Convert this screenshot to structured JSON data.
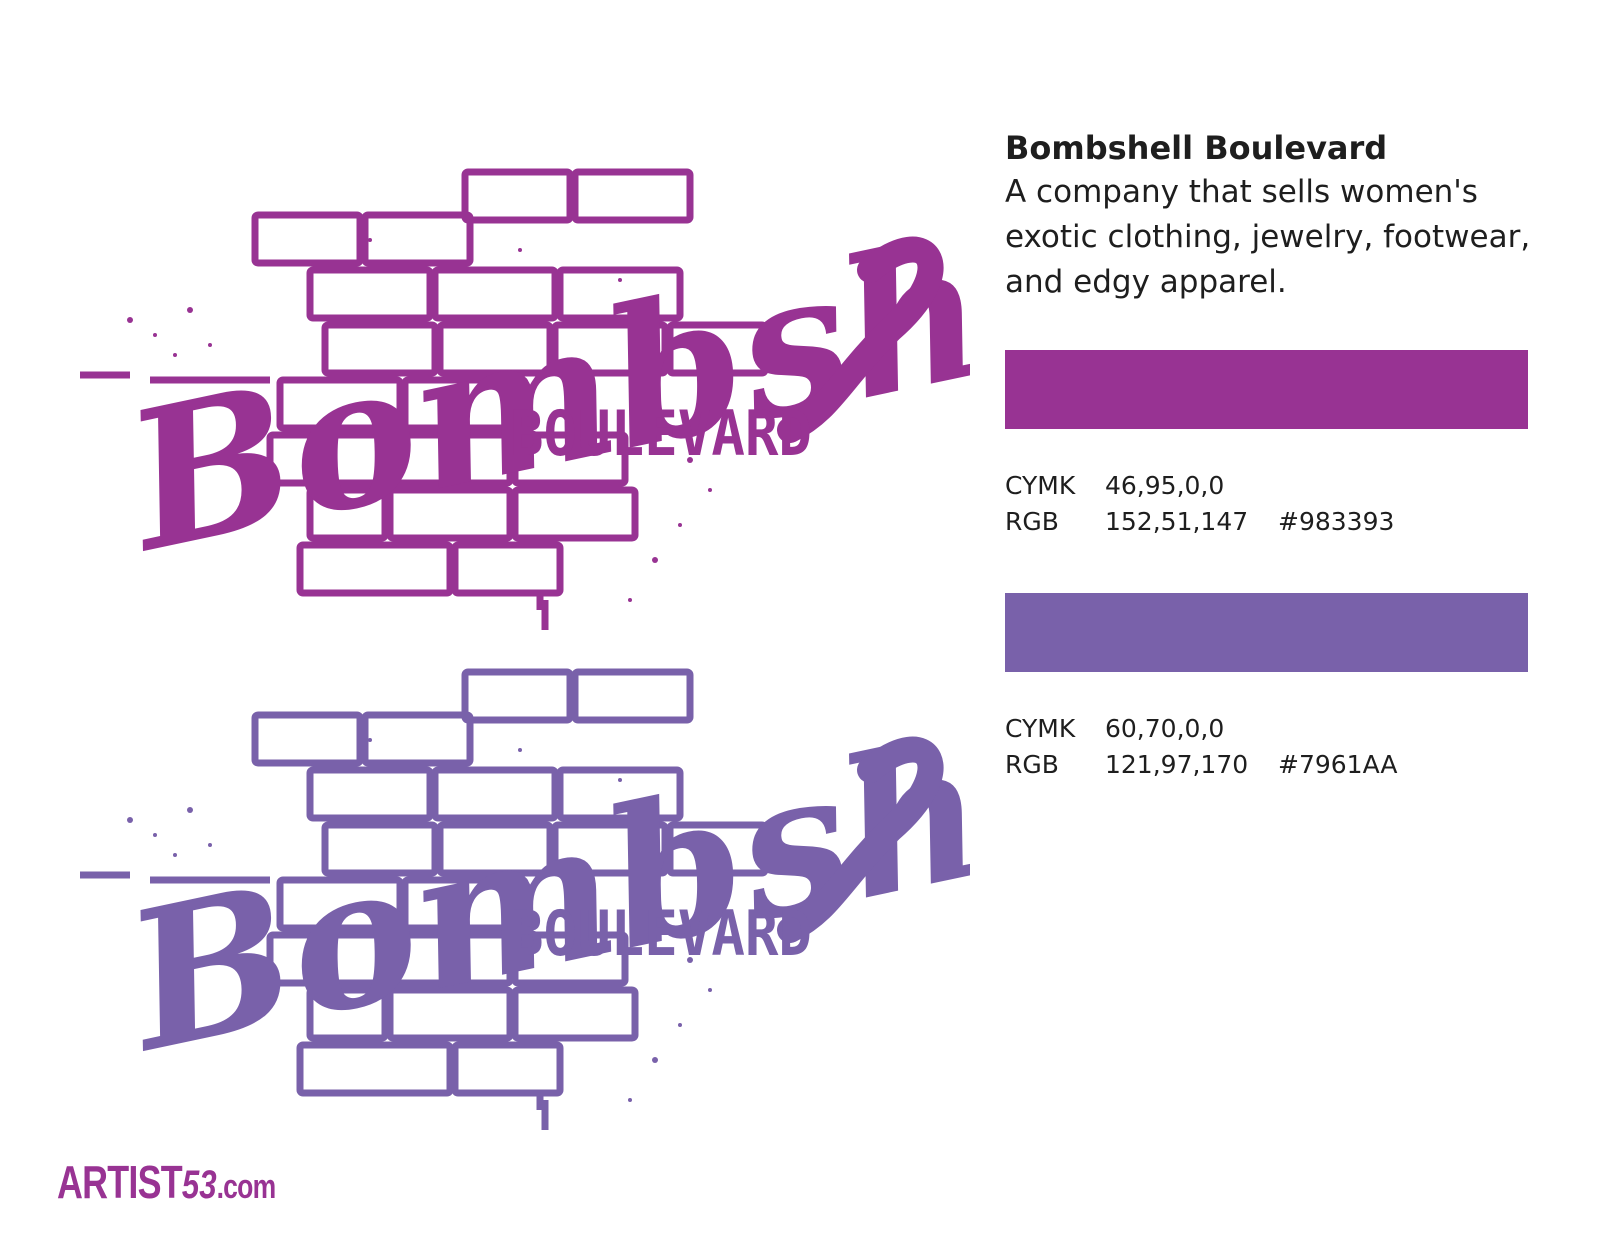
{
  "brand": {
    "name": "Bombshell Boulevard",
    "description": "A company that sells women's exotic clothing, jewelry, footwear, and edgy apparel."
  },
  "logos": [
    {
      "script_text": "Bombshell",
      "sub_text": "BOULEVARD",
      "color": "#983393"
    },
    {
      "script_text": "Bombshell",
      "sub_text": "BOULEVARD",
      "color": "#7961AA"
    }
  ],
  "swatches": [
    {
      "color": "#983393",
      "cymk_label": "CYMK",
      "cymk_value": "46,95,0,0",
      "rgb_label": "RGB",
      "rgb_value": "152,51,147",
      "hex": "#983393"
    },
    {
      "color": "#7961AA",
      "cymk_label": "CYMK",
      "cymk_value": "60,70,0,0",
      "rgb_label": "RGB",
      "rgb_value": "121,97,170",
      "hex": "#7961AA"
    }
  ],
  "footer": {
    "logo_main": "ARTIST",
    "logo_number": "53",
    "logo_suffix": ".com",
    "color": "#983393"
  }
}
